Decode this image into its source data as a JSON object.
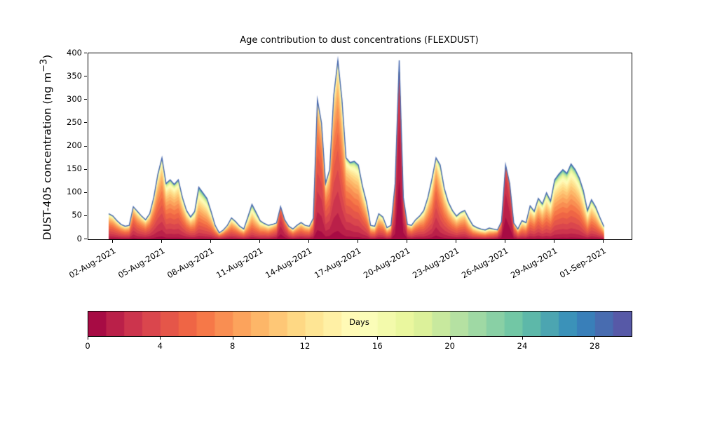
{
  "labels": {
    "ylabel_prefix": "DUST-405 concentration (ng m",
    "ylabel_sup": "−3",
    "ylabel_suffix": ")"
  },
  "chart_data": {
    "type": "area",
    "stacked": true,
    "title": "Age contribution to dust concentrations (FLEXDUST)",
    "xlabel": "",
    "ylabel": "DUST-405 concentration (ng m^-3)",
    "ylim": [
      0,
      400
    ],
    "yticks": [
      0,
      50,
      100,
      150,
      200,
      250,
      300,
      350,
      400
    ],
    "x_domain_days": [
      0.5,
      33.7
    ],
    "xtick_days": [
      2,
      5,
      8,
      11,
      14,
      17,
      20,
      23,
      26,
      29,
      32
    ],
    "xtick_labels": [
      "02-Aug-2021",
      "05-Aug-2021",
      "08-Aug-2021",
      "11-Aug-2021",
      "14-Aug-2021",
      "17-Aug-2021",
      "20-Aug-2021",
      "23-Aug-2021",
      "26-Aug-2021",
      "29-Aug-2021",
      "01-Sep-2021"
    ],
    "x_start_day": 1.75,
    "x_step_days": 0.25,
    "total_concentration": [
      55,
      50,
      40,
      32,
      28,
      30,
      70,
      60,
      50,
      42,
      55,
      90,
      140,
      175,
      120,
      128,
      118,
      128,
      90,
      62,
      48,
      60,
      112,
      100,
      88,
      60,
      30,
      14,
      20,
      30,
      46,
      38,
      28,
      22,
      48,
      75,
      58,
      40,
      34,
      30,
      32,
      35,
      70,
      42,
      28,
      22,
      30,
      36,
      30,
      28,
      45,
      300,
      250,
      120,
      150,
      310,
      385,
      300,
      175,
      165,
      168,
      160,
      115,
      80,
      30,
      28,
      55,
      48,
      25,
      30,
      120,
      385,
      90,
      32,
      30,
      42,
      50,
      62,
      90,
      130,
      175,
      160,
      110,
      80,
      62,
      50,
      58,
      62,
      45,
      30,
      25,
      22,
      20,
      24,
      22,
      20,
      38,
      160,
      120,
      35,
      22,
      40,
      36,
      72,
      60,
      88,
      76,
      100,
      82,
      128,
      140,
      150,
      142,
      162,
      150,
      132,
      105,
      62,
      85,
      70,
      48,
      28
    ],
    "mean_age_days": [
      7,
      7,
      7,
      7,
      7,
      7,
      6,
      7,
      7,
      7,
      7,
      7,
      7,
      7,
      8,
      8,
      8,
      8,
      8,
      8,
      8,
      9,
      10,
      10,
      10,
      9,
      8,
      7,
      7,
      7,
      8,
      8,
      8,
      8,
      10,
      10,
      10,
      9,
      8,
      8,
      7,
      6,
      3,
      4,
      6,
      7,
      7,
      7,
      7,
      7,
      6,
      5,
      5,
      6,
      6,
      6,
      6,
      7,
      7,
      7,
      8,
      8,
      8,
      8,
      8,
      8,
      8,
      8,
      8,
      7,
      4,
      1.8,
      3,
      6,
      7,
      7,
      7,
      8,
      8,
      8,
      6,
      8,
      8,
      8,
      8,
      8,
      8,
      8,
      9,
      9,
      9,
      9,
      9,
      9,
      8,
      6,
      4,
      2,
      2.5,
      5,
      7,
      8,
      8,
      8,
      8,
      8,
      9,
      9,
      9,
      9,
      9,
      9,
      9,
      9,
      9,
      9,
      10,
      10,
      9,
      9,
      9,
      9
    ],
    "age_bins": 30,
    "envelope_color": "#4869af",
    "colormap_name": "Spectral",
    "colormap_stops": [
      [
        0.0,
        "#9e0142"
      ],
      [
        0.1,
        "#d53e4f"
      ],
      [
        0.2,
        "#f46d43"
      ],
      [
        0.3,
        "#fdae61"
      ],
      [
        0.4,
        "#fee08b"
      ],
      [
        0.5,
        "#ffffbf"
      ],
      [
        0.6,
        "#e6f598"
      ],
      [
        0.7,
        "#abdda4"
      ],
      [
        0.8,
        "#66c2a5"
      ],
      [
        0.9,
        "#3288bd"
      ],
      [
        1.0,
        "#5e4fa2"
      ]
    ],
    "colorbar": {
      "label": "Days",
      "vmin": 0,
      "vmax": 30,
      "segments": 30,
      "ticks": [
        0,
        4,
        8,
        12,
        16,
        20,
        24,
        28
      ]
    }
  }
}
